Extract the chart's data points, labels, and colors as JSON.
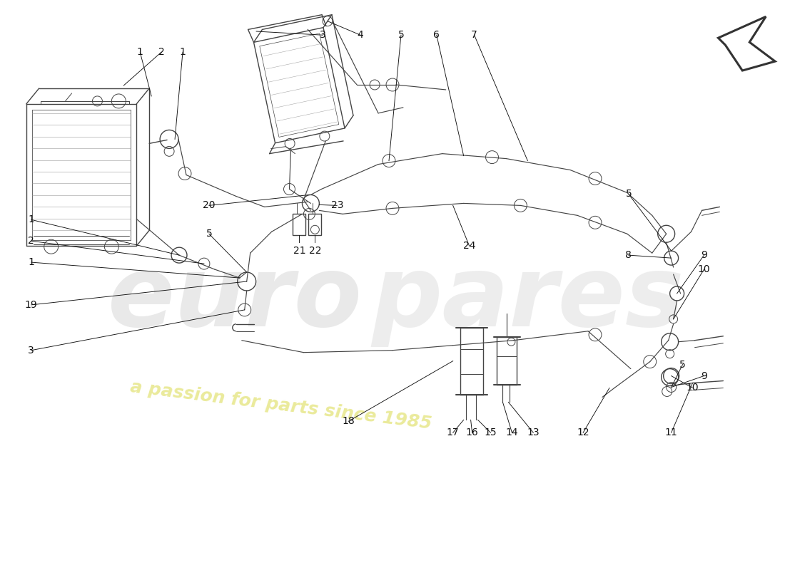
{
  "bg_color": "#ffffff",
  "line_color": "#444444",
  "label_color": "#111111",
  "watermark_euro": "#d4d4d4",
  "watermark_text": "#e8e890",
  "arrow_fill": "#ffffff",
  "arrow_edge": "#333333",
  "lw_component": 1.0,
  "lw_pipe": 1.2,
  "lw_thin": 0.7,
  "lw_leader": 0.65,
  "font_label": 10,
  "fig_w": 11.0,
  "fig_h": 8.0,
  "dpi": 100,
  "xlim": [
    0,
    11
  ],
  "ylim": [
    0,
    8
  ]
}
